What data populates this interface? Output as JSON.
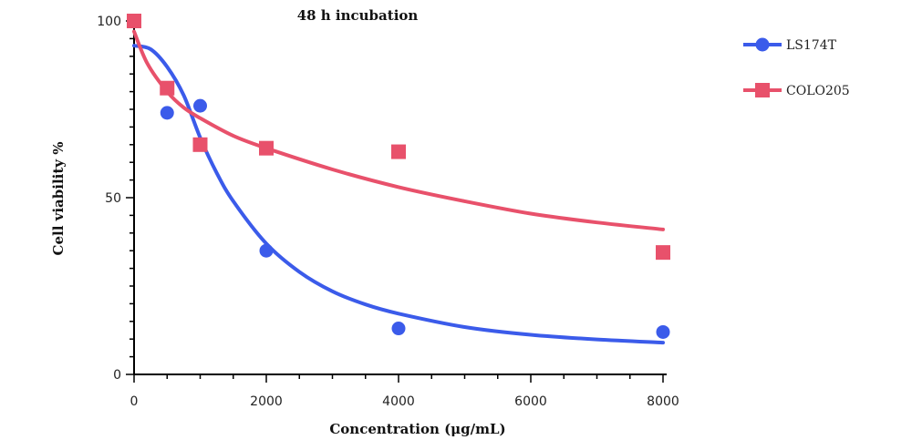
{
  "chart_data": {
    "type": "scatter",
    "title": "48 h incubation",
    "xlabel": "Concentration (μg/mL)",
    "ylabel": "Cell viability %",
    "xlim": [
      0,
      8000
    ],
    "ylim": [
      0,
      100
    ],
    "x_ticks": [
      0,
      2000,
      4000,
      6000,
      8000
    ],
    "y_ticks": [
      0,
      50,
      100
    ],
    "grid": false,
    "legend_position": "top-right",
    "series": [
      {
        "name": "LS174T",
        "marker": "circle",
        "color": "#3b5bea",
        "points": [
          {
            "x": 0,
            "y": 100
          },
          {
            "x": 500,
            "y": 74
          },
          {
            "x": 1000,
            "y": 76
          },
          {
            "x": 2000,
            "y": 35
          },
          {
            "x": 4000,
            "y": 13
          },
          {
            "x": 8000,
            "y": 12
          }
        ],
        "fit_curve": [
          {
            "x": 0,
            "y": 93
          },
          {
            "x": 250,
            "y": 92
          },
          {
            "x": 500,
            "y": 87
          },
          {
            "x": 750,
            "y": 79
          },
          {
            "x": 1000,
            "y": 67
          },
          {
            "x": 1250,
            "y": 57
          },
          {
            "x": 1500,
            "y": 49
          },
          {
            "x": 2000,
            "y": 37
          },
          {
            "x": 2500,
            "y": 29
          },
          {
            "x": 3000,
            "y": 23.5
          },
          {
            "x": 3500,
            "y": 19.8
          },
          {
            "x": 4000,
            "y": 17.2
          },
          {
            "x": 5000,
            "y": 13.4
          },
          {
            "x": 6000,
            "y": 11.2
          },
          {
            "x": 7000,
            "y": 9.9
          },
          {
            "x": 8000,
            "y": 9
          }
        ]
      },
      {
        "name": "COLO205",
        "marker": "square",
        "color": "#e8516b",
        "points": [
          {
            "x": 0,
            "y": 100
          },
          {
            "x": 500,
            "y": 81
          },
          {
            "x": 1000,
            "y": 65
          },
          {
            "x": 2000,
            "y": 64
          },
          {
            "x": 4000,
            "y": 63
          },
          {
            "x": 8000,
            "y": 34.5
          }
        ],
        "fit_curve": [
          {
            "x": 0,
            "y": 97
          },
          {
            "x": 200,
            "y": 88
          },
          {
            "x": 500,
            "y": 80
          },
          {
            "x": 750,
            "y": 75.5
          },
          {
            "x": 1000,
            "y": 72.5
          },
          {
            "x": 1500,
            "y": 67.5
          },
          {
            "x": 2000,
            "y": 64
          },
          {
            "x": 3000,
            "y": 58
          },
          {
            "x": 4000,
            "y": 53
          },
          {
            "x": 5000,
            "y": 49
          },
          {
            "x": 6000,
            "y": 45.5
          },
          {
            "x": 7000,
            "y": 43
          },
          {
            "x": 8000,
            "y": 41
          }
        ]
      }
    ]
  }
}
